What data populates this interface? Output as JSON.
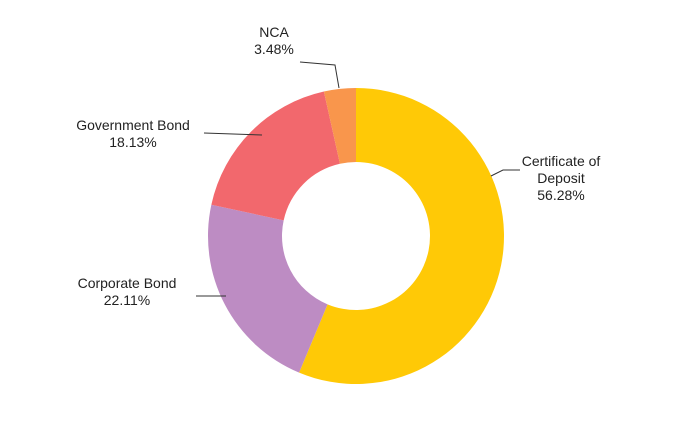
{
  "chart_data": {
    "type": "pie",
    "donut": true,
    "start_angle_deg": 0,
    "direction": "clockwise",
    "slices": [
      {
        "name": "Certificate of Deposit",
        "label_lines": [
          "Certificate of",
          "Deposit"
        ],
        "value": 56.28,
        "value_label": "56.28%",
        "color": "#FFC906"
      },
      {
        "name": "Corporate Bond",
        "label_lines": [
          "Corporate Bond"
        ],
        "value": 22.11,
        "value_label": "22.11%",
        "color": "#BD8CC3"
      },
      {
        "name": "Government Bond",
        "label_lines": [
          "Government Bond"
        ],
        "value": 18.13,
        "value_label": "18.13%",
        "color": "#F2686D"
      },
      {
        "name": "NCA",
        "label_lines": [
          "NCA"
        ],
        "value": 3.48,
        "value_label": "3.48%",
        "color": "#F9964C"
      }
    ],
    "background": "#FFFFFF"
  }
}
